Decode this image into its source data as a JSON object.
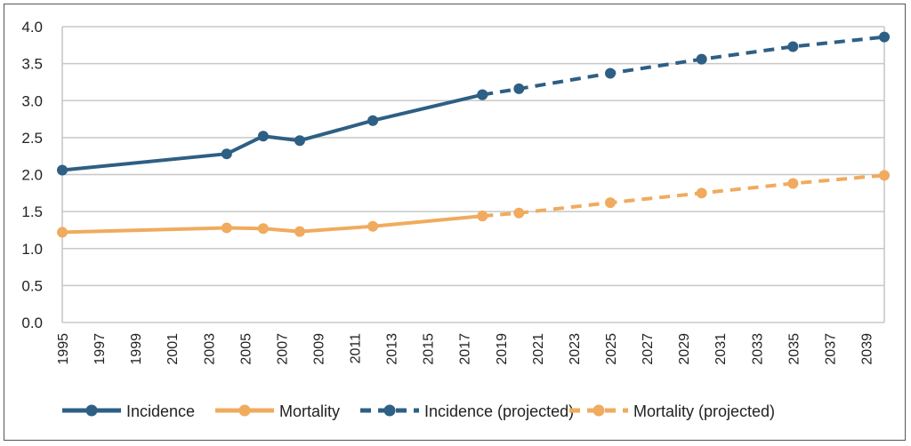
{
  "chart_data": {
    "type": "line",
    "title": "",
    "xlabel": "",
    "ylabel": "",
    "xlim": [
      1995,
      2040
    ],
    "ylim": [
      0,
      4
    ],
    "y_ticks": [
      "0.0",
      "0.5",
      "1.0",
      "1.5",
      "2.0",
      "2.5",
      "3.0",
      "3.5",
      "4.0"
    ],
    "x_ticks": [
      "1995",
      "1997",
      "1999",
      "2001",
      "2003",
      "2005",
      "2007",
      "2009",
      "2011",
      "2013",
      "2015",
      "2017",
      "2019",
      "2021",
      "2023",
      "2025",
      "2027",
      "2029",
      "2031",
      "2033",
      "2035",
      "2037",
      "2039"
    ],
    "grid": true,
    "legend_position": "bottom",
    "colors": {
      "incidence": "#2E5F84",
      "mortality": "#F0AB5E"
    },
    "series": [
      {
        "name": "Incidence",
        "color": "#2E5F84",
        "style": "solid",
        "x": [
          1995,
          2004,
          2006,
          2008,
          2012,
          2018
        ],
        "y": [
          2.06,
          2.28,
          2.52,
          2.46,
          2.73,
          3.08
        ]
      },
      {
        "name": "Mortality",
        "color": "#F0AB5E",
        "style": "solid",
        "x": [
          1995,
          2004,
          2006,
          2008,
          2012,
          2018
        ],
        "y": [
          1.22,
          1.28,
          1.27,
          1.23,
          1.3,
          1.44
        ]
      },
      {
        "name": "Incidence (projected)",
        "color": "#2E5F84",
        "style": "dashed",
        "x": [
          2018,
          2020,
          2025,
          2030,
          2035,
          2040
        ],
        "y": [
          3.08,
          3.16,
          3.37,
          3.56,
          3.73,
          3.86
        ]
      },
      {
        "name": "Mortality (projected)",
        "color": "#F0AB5E",
        "style": "dashed",
        "x": [
          2018,
          2020,
          2025,
          2030,
          2035,
          2040
        ],
        "y": [
          1.44,
          1.48,
          1.62,
          1.75,
          1.88,
          1.99
        ]
      }
    ]
  }
}
